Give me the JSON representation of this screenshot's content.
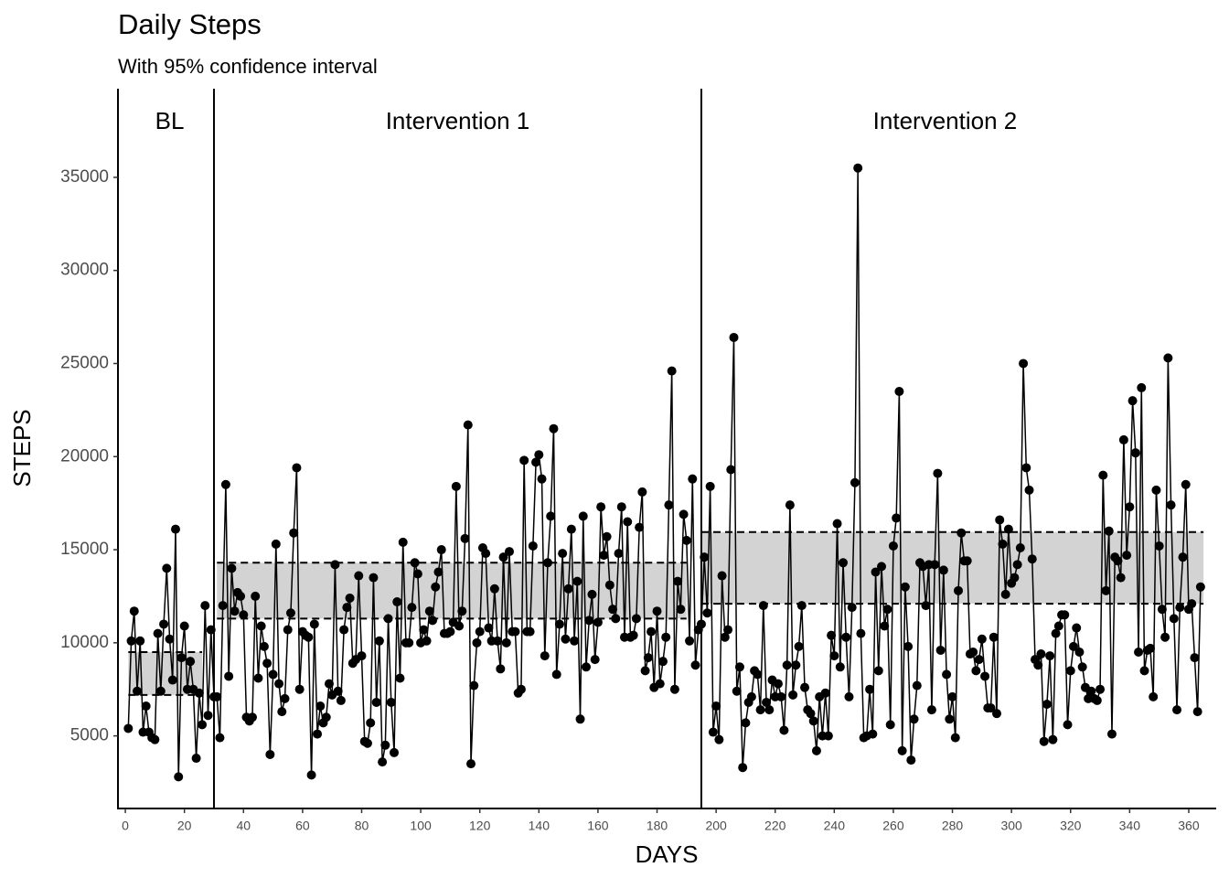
{
  "chart_data": {
    "type": "line",
    "title": "Daily Steps",
    "subtitle": "With 95% confidence interval",
    "x_label": "DAYS",
    "y_label": "STEPS",
    "xlim": [
      -2.5,
      369.3
    ],
    "ylim": [
      1100,
      39760
    ],
    "xticks": [
      0,
      20,
      40,
      60,
      80,
      100,
      120,
      140,
      160,
      180,
      200,
      220,
      240,
      260,
      280,
      300,
      320,
      340,
      360
    ],
    "yticks": [
      5000,
      10000,
      15000,
      20000,
      25000,
      30000,
      35000
    ],
    "grid": false,
    "phases": [
      {
        "label": "BL",
        "start": 0,
        "end": 30
      },
      {
        "label": "Intervention 1",
        "start": 30,
        "end": 195
      },
      {
        "label": "Intervention 2",
        "start": 195,
        "end": 360
      }
    ],
    "phase_lines": [
      30,
      195
    ],
    "ci_bands": [
      {
        "start": 1,
        "end": 26,
        "lower": 7200,
        "upper": 9500
      },
      {
        "start": 31,
        "end": 190,
        "lower": 11300,
        "upper": 14300
      },
      {
        "start": 195,
        "end": 365,
        "lower": 12100,
        "upper": 15950
      }
    ],
    "band_color": "#d3d3d3",
    "series": [
      {
        "name": "Steps",
        "color": "#000000",
        "x": [
          1,
          2,
          3,
          4,
          5,
          6,
          7,
          8,
          9,
          10,
          11,
          12,
          13,
          14,
          15,
          16,
          17,
          18,
          19,
          20,
          21,
          22,
          23,
          24,
          25,
          26,
          27,
          28,
          29,
          30,
          31,
          32,
          33,
          34,
          35,
          36,
          37,
          38,
          39,
          40,
          41,
          42,
          43,
          44,
          45,
          46,
          47,
          48,
          49,
          50,
          51,
          52,
          53,
          54,
          55,
          56,
          57,
          58,
          59,
          60,
          61,
          62,
          63,
          64,
          65,
          66,
          67,
          68,
          69,
          70,
          71,
          72,
          73,
          74,
          75,
          76,
          77,
          78,
          79,
          80,
          81,
          82,
          83,
          84,
          85,
          86,
          87,
          88,
          89,
          90,
          91,
          92,
          93,
          94,
          95,
          96,
          97,
          98,
          99,
          100,
          101,
          102,
          103,
          104,
          105,
          106,
          107,
          108,
          109,
          110,
          111,
          112,
          113,
          114,
          115,
          116,
          117,
          118,
          119,
          120,
          121,
          122,
          123,
          124,
          125,
          126,
          127,
          128,
          129,
          130,
          131,
          132,
          133,
          134,
          135,
          136,
          137,
          138,
          139,
          140,
          141,
          142,
          143,
          144,
          145,
          146,
          147,
          148,
          149,
          150,
          151,
          152,
          153,
          154,
          155,
          156,
          157,
          158,
          159,
          160,
          161,
          162,
          163,
          164,
          165,
          166,
          167,
          168,
          169,
          170,
          171,
          172,
          173,
          174,
          175,
          176,
          177,
          178,
          179,
          180,
          181,
          182,
          183,
          184,
          185,
          186,
          187,
          188,
          189,
          190,
          191,
          192,
          193,
          194,
          195,
          196,
          197,
          198,
          199,
          200,
          201,
          202,
          203,
          204,
          205,
          206,
          207,
          208,
          209,
          210,
          211,
          212,
          213,
          214,
          215,
          216,
          217,
          218,
          219,
          220,
          221,
          222,
          223,
          224,
          225,
          226,
          227,
          228,
          229,
          230,
          231,
          232,
          233,
          234,
          235,
          236,
          237,
          238,
          239,
          240,
          241,
          242,
          243,
          244,
          245,
          246,
          247,
          248,
          249,
          250,
          251,
          252,
          253,
          254,
          255,
          256,
          257,
          258,
          259,
          260,
          261,
          262,
          263,
          264,
          265,
          266,
          267,
          268,
          269,
          270,
          271,
          272,
          273,
          274,
          275,
          276,
          277,
          278,
          279,
          280,
          281,
          282,
          283,
          284,
          285,
          286,
          287,
          288,
          289,
          290,
          291,
          292,
          293,
          294,
          295,
          296,
          297,
          298,
          299,
          300,
          301,
          302,
          303,
          304,
          305,
          306,
          307,
          308,
          309,
          310,
          311,
          312,
          313,
          314,
          315,
          316,
          317,
          318,
          319,
          320,
          321,
          322,
          323,
          324,
          325,
          326,
          327,
          328,
          329,
          330,
          331,
          332,
          333,
          334,
          335,
          336,
          337,
          338,
          339,
          340,
          341,
          342,
          343,
          344,
          345,
          346,
          347,
          348,
          349,
          350,
          351,
          352,
          353,
          354,
          355,
          356,
          357,
          358,
          359,
          360,
          361,
          362,
          363,
          364
        ],
        "values": [
          5400,
          10100,
          11700,
          7400,
          10100,
          5200,
          6600,
          5200,
          4900,
          4800,
          10500,
          7400,
          11000,
          14000,
          10200,
          8000,
          16100,
          2800,
          9200,
          10900,
          7500,
          9000,
          7500,
          3800,
          7300,
          5600,
          12000,
          6100,
          10700,
          7100,
          7100,
          4900,
          12000,
          18500,
          8200,
          14000,
          11700,
          12700,
          12500,
          11500,
          6000,
          5800,
          6000,
          12500,
          8100,
          10900,
          9800,
          8900,
          4000,
          8300,
          15300,
          7800,
          6300,
          7000,
          10700,
          11600,
          15900,
          19400,
          7500,
          10600,
          10400,
          10300,
          2900,
          11000,
          5100,
          6600,
          5700,
          6000,
          7800,
          7200,
          14200,
          7400,
          6900,
          10700,
          11900,
          12400,
          8900,
          9100,
          13600,
          9300,
          4700,
          4600,
          5700,
          13500,
          6800,
          10100,
          3600,
          4500,
          11300,
          6800,
          4100,
          12200,
          8100,
          15400,
          10000,
          10000,
          11900,
          14300,
          13700,
          10000,
          10700,
          10100,
          11700,
          11200,
          13000,
          13800,
          15000,
          10500,
          10500,
          10600,
          11100,
          18400,
          10900,
          11700,
          15600,
          21700,
          3500,
          7700,
          10000,
          10600,
          15100,
          14800,
          10800,
          10100,
          12900,
          10100,
          8600,
          14600,
          10000,
          14900,
          10600,
          10600,
          7300,
          7500,
          19800,
          10600,
          10600,
          15200,
          19700,
          20100,
          18800,
          9300,
          14300,
          16800,
          21500,
          8300,
          11000,
          14800,
          10200,
          12900,
          16100,
          10100,
          13300,
          5900,
          16800,
          8700,
          11200,
          12600,
          9100,
          11100,
          17300,
          14700,
          15700,
          13100,
          11800,
          11300,
          14800,
          17300,
          10300,
          16500,
          10300,
          10400,
          11300,
          16200,
          18100,
          8500,
          9200,
          10600,
          7600,
          11700,
          7800,
          9000,
          10300,
          17400,
          24600,
          7500,
          13300,
          11800,
          16900,
          15500,
          10100,
          18800,
          8800,
          10700,
          11000,
          14600,
          11600,
          18400,
          5200,
          6600,
          4800,
          13600,
          10300,
          10700,
          19300,
          26400,
          7400,
          8700,
          3300,
          5700,
          6800,
          7100,
          8500,
          8300,
          6400,
          12000,
          6800,
          6400,
          8000,
          7100,
          7800,
          7100,
          5300,
          8800,
          17400,
          7200,
          8800,
          9800,
          12000,
          7600,
          6400,
          6200,
          5800,
          4200,
          7100,
          5000,
          7300,
          5000,
          10400,
          9300,
          16400,
          8700,
          14300,
          10300,
          7100,
          11900,
          18600,
          35500,
          10500,
          4900,
          5000,
          7500,
          5100,
          13800,
          8500,
          14100,
          10900,
          11800,
          5600,
          15200,
          16700,
          23500,
          4200,
          13000,
          9800,
          3700,
          5900,
          7700,
          14300,
          14100,
          12000,
          14200,
          6400,
          14200,
          19100,
          9600,
          13900,
          8300,
          5900,
          7100,
          4900,
          12800,
          15900,
          14400,
          14400,
          9400,
          9500,
          8500,
          9100,
          10200,
          8200,
          6500,
          6500,
          10300,
          6200,
          16600,
          15300,
          12600,
          16100,
          13200,
          13500,
          14200,
          15100,
          25000,
          19400,
          18200,
          14500,
          9100,
          8800,
          9400,
          4700,
          6700,
          9300,
          4800,
          10500,
          10900,
          11500,
          11500,
          5600,
          8500,
          9800,
          10800,
          9500,
          8700,
          7600,
          7000,
          7400,
          7000,
          6900,
          7500,
          19000,
          12800,
          16000,
          5100,
          14600,
          14400,
          13500,
          20900,
          14700,
          17300,
          23000,
          20200,
          9500,
          23700,
          8500,
          9600,
          9700,
          7100,
          18200,
          15200,
          11800,
          10300,
          25300,
          17400,
          11300,
          6400,
          11900,
          14600,
          18500,
          11800,
          12100,
          9200,
          6300,
          13000
        ]
      }
    ]
  }
}
